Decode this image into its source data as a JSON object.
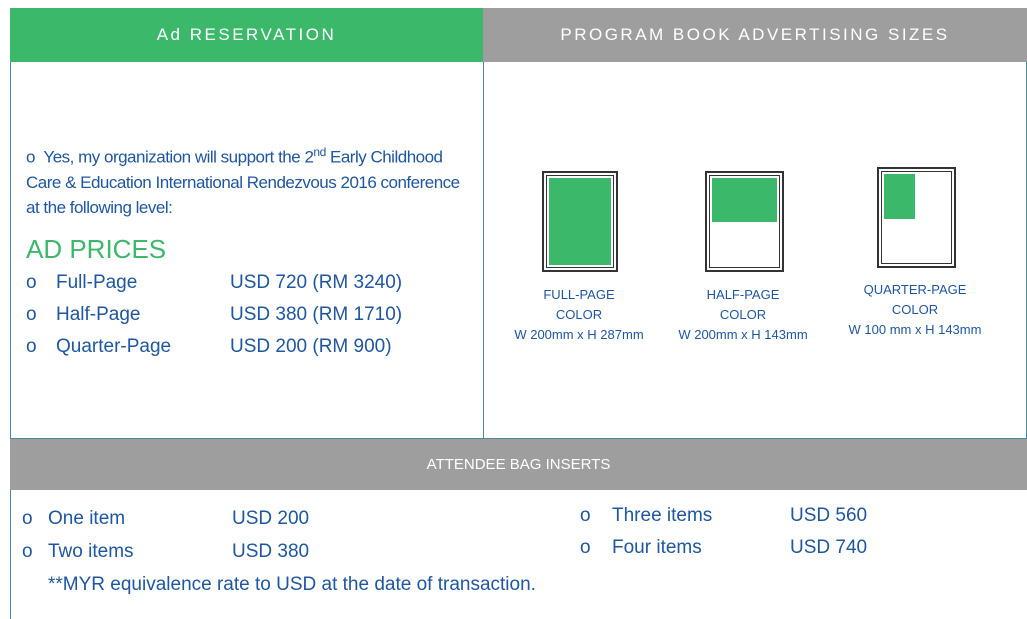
{
  "ad_reservation": {
    "header": "Ad RESERVATION",
    "intro": {
      "bullet": "o",
      "text": "Yes, my organization will support the 2",
      "superscript": "nd",
      "rest": "Early Childhood Care & Education International Rendezvous 2016 conference at the following level:"
    },
    "prices_title": "AD PRICES",
    "prices": [
      {
        "bullet": "o",
        "name": "Full-Page",
        "price": "USD 720 (RM 3240)"
      },
      {
        "bullet": "o",
        "name": "Half-Page",
        "price": "USD 380 (RM 1710)"
      },
      {
        "bullet": "o",
        "name": "Quarter-Page",
        "price": "USD 200 (RM 900)"
      }
    ]
  },
  "sizes": {
    "header": "PROGRAM BOOK ADVERTISING SIZES",
    "items": [
      {
        "name": "FULL-PAGE",
        "color": "COLOR",
        "dimensions": "W 200mm x H 287mm"
      },
      {
        "name": "HALF-PAGE",
        "color": "COLOR",
        "dimensions": "W 200mm x H 143mm"
      },
      {
        "name": "QUARTER-PAGE",
        "color": "COLOR",
        "dimensions": "W 100 mm x H 143mm"
      }
    ]
  },
  "bag_inserts": {
    "header": "ATTENDEE BAG INSERTS",
    "items": [
      {
        "bullet": "o",
        "name": "One item",
        "price": "USD 200"
      },
      {
        "bullet": "o",
        "name": "Two items",
        "price": "USD 380"
      },
      {
        "bullet": "o",
        "name": "Three items",
        "price": "USD 560"
      },
      {
        "bullet": "o",
        "name": "Four items",
        "price": "USD 740"
      }
    ],
    "note": "**MYR equivalence rate to USD at the date of transaction."
  }
}
